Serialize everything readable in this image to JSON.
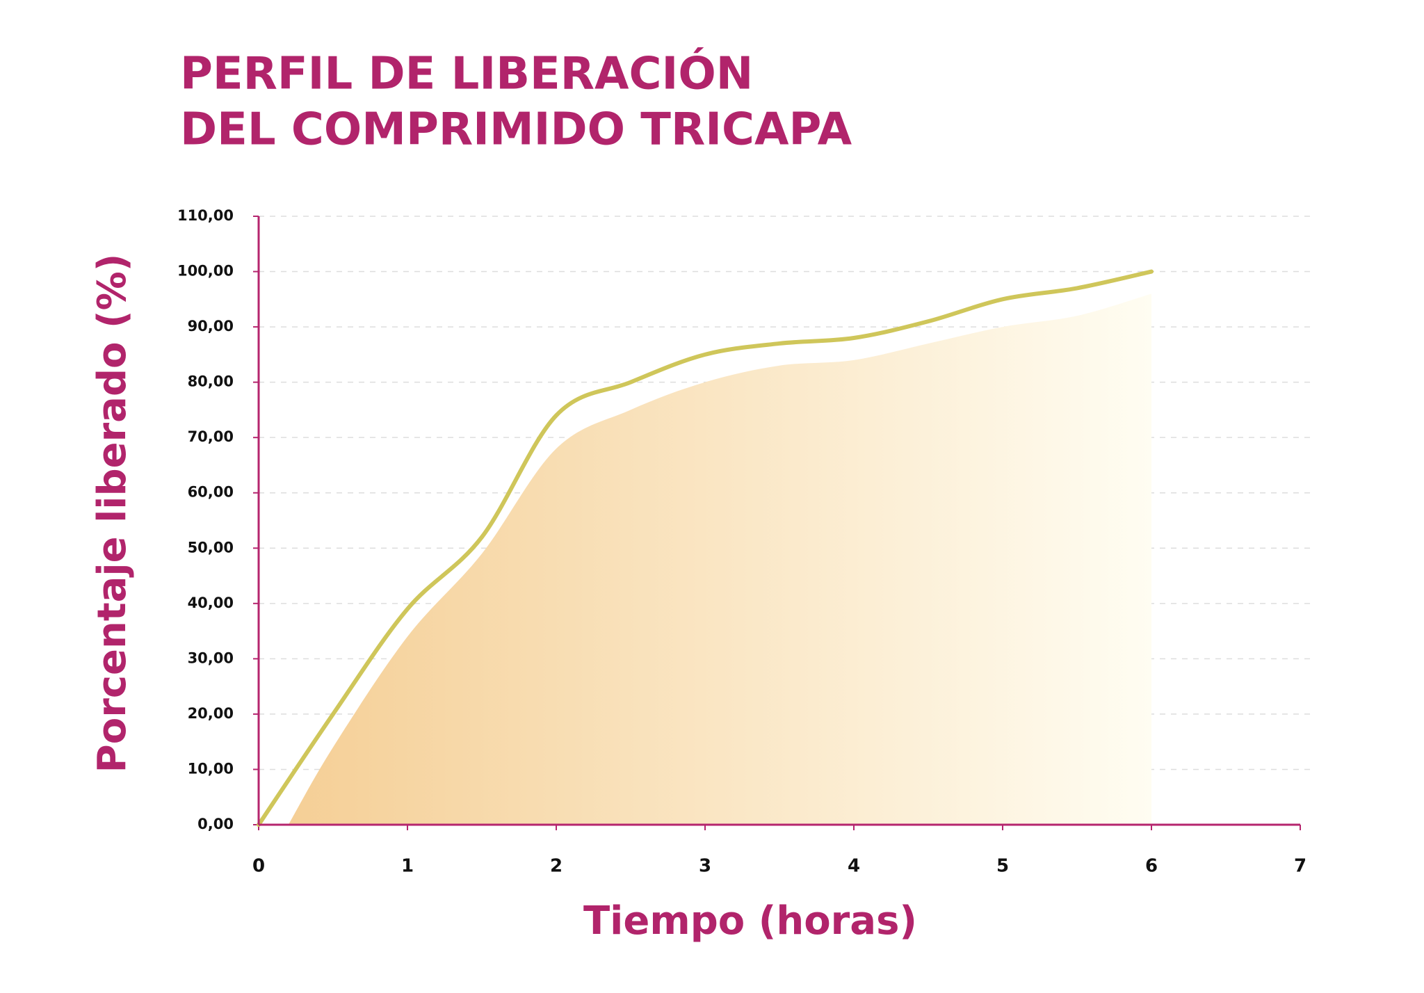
{
  "chart_data": {
    "type": "line",
    "title": [
      "PERFIL DE LIBERACIÓN",
      "DEL COMPRIMIDO TRICAPA"
    ],
    "x_label": "Tiempo (horas)",
    "y_label": "Porcentaje liberado (%)",
    "axis_color": "#b5256e",
    "grid": true,
    "xlim": [
      0,
      7
    ],
    "xticks": [
      0,
      1,
      2,
      3,
      4,
      5,
      6,
      7
    ],
    "ylim": [
      0,
      110
    ],
    "yticks": [
      {
        "value": 0,
        "label": "0,00"
      },
      {
        "value": 10,
        "label": "10,00"
      },
      {
        "value": 20,
        "label": "20,00"
      },
      {
        "value": 30,
        "label": "30,00"
      },
      {
        "value": 40,
        "label": "40,00"
      },
      {
        "value": 50,
        "label": "50,00"
      },
      {
        "value": 60,
        "label": "60,00"
      },
      {
        "value": 70,
        "label": "70,00"
      },
      {
        "value": 80,
        "label": "80,00"
      },
      {
        "value": 90,
        "label": "90,00"
      },
      {
        "value": 100,
        "label": "100,00"
      },
      {
        "value": 110,
        "label": "110,00"
      }
    ],
    "series": [
      {
        "kind": "area",
        "color": [
          "#f5cf96",
          "#fffdf2"
        ],
        "x": [
          0.2,
          0.5,
          1,
          1.5,
          2,
          2.5,
          3,
          3.5,
          4,
          4.5,
          5,
          5.5,
          6
        ],
        "values": [
          0,
          14,
          34,
          49,
          68,
          75,
          80,
          83,
          84,
          87,
          90,
          92,
          96
        ]
      },
      {
        "kind": "line",
        "color": "#cfc65a",
        "x": [
          0,
          0.5,
          1,
          1.5,
          2,
          2.5,
          3,
          3.5,
          4,
          4.5,
          5,
          5.5,
          6
        ],
        "values": [
          0,
          20,
          39,
          52,
          74,
          80,
          85,
          87,
          88,
          91,
          95,
          97,
          100
        ]
      }
    ]
  }
}
